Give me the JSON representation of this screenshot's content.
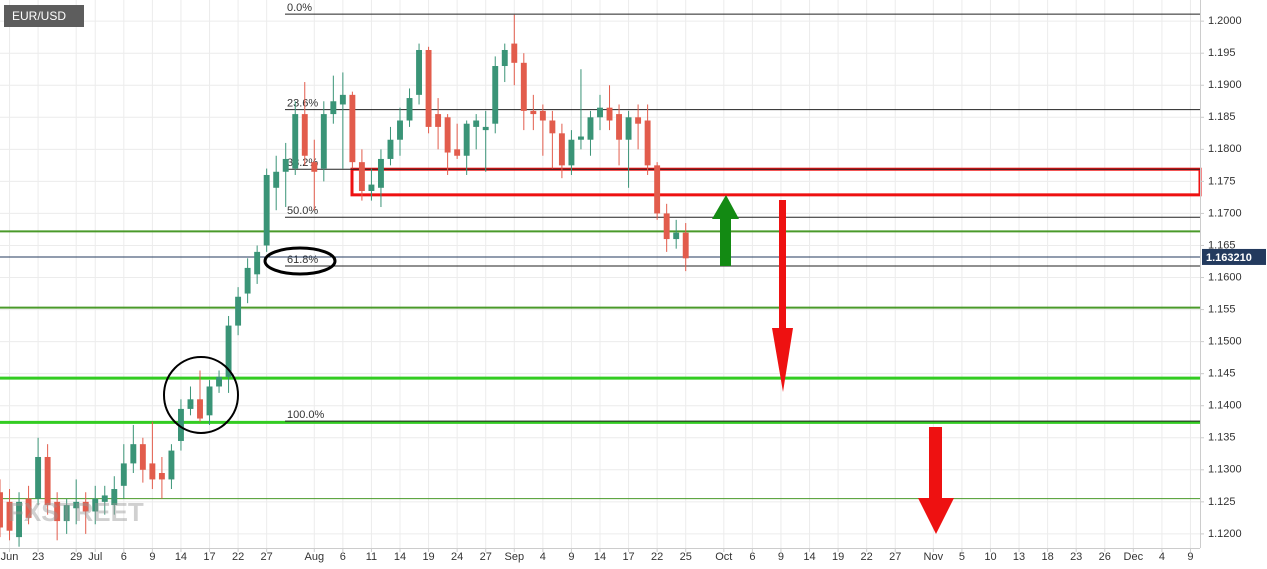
{
  "chart_data": {
    "type": "candlestick",
    "title": "EUR/USD",
    "watermark": "FXSTREET",
    "up_color": "#3a9477",
    "down_color": "#e25c4c",
    "grid": true,
    "x": [
      -4,
      -3,
      -2,
      -1,
      0,
      1,
      2,
      3,
      4,
      5,
      6,
      7,
      8,
      9,
      10,
      11,
      12,
      13,
      14,
      15,
      16,
      17,
      18,
      19,
      20,
      21,
      22,
      23,
      24,
      25,
      26,
      27,
      28,
      29,
      30,
      31,
      32,
      33,
      34,
      35,
      36,
      37,
      38,
      39,
      40,
      41,
      42,
      43,
      44,
      45,
      46,
      47,
      48,
      49,
      50,
      51,
      52,
      53,
      54,
      55,
      56,
      57,
      58,
      59,
      60,
      61,
      62,
      63,
      64,
      65,
      66,
      67,
      68
    ],
    "open": [
      1.1265,
      1.125,
      1.1195,
      1.1255,
      1.1255,
      1.132,
      1.125,
      1.122,
      1.124,
      1.125,
      1.1235,
      1.125,
      1.1245,
      1.1275,
      1.131,
      1.134,
      1.131,
      1.1295,
      1.1285,
      1.1345,
      1.1395,
      1.141,
      1.1385,
      1.143,
      1.1445,
      1.1525,
      1.1575,
      1.1605,
      1.165,
      1.174,
      1.1765,
      1.177,
      1.1855,
      1.178,
      1.177,
      1.1855,
      1.187,
      1.1885,
      1.178,
      1.1735,
      1.174,
      1.1785,
      1.1815,
      1.1845,
      1.1885,
      1.1955,
      1.1855,
      1.185,
      1.18,
      1.179,
      1.1835,
      1.183,
      1.184,
      1.193,
      1.1965,
      1.1935,
      1.186,
      1.186,
      1.1845,
      1.1825,
      1.1775,
      1.1815,
      1.1815,
      1.185,
      1.1865,
      1.1855,
      1.1815,
      1.185,
      1.1845,
      1.1775,
      1.17,
      1.166,
      1.167
    ],
    "high": [
      1.1285,
      1.127,
      1.1265,
      1.1275,
      1.135,
      1.134,
      1.1265,
      1.1255,
      1.1285,
      1.1265,
      1.1275,
      1.1275,
      1.129,
      1.134,
      1.137,
      1.135,
      1.1375,
      1.132,
      1.134,
      1.141,
      1.143,
      1.1455,
      1.144,
      1.1455,
      1.154,
      1.1585,
      1.163,
      1.165,
      1.177,
      1.179,
      1.181,
      1.1875,
      1.1905,
      1.1815,
      1.1875,
      1.1915,
      1.192,
      1.189,
      1.18,
      1.177,
      1.18,
      1.1835,
      1.1865,
      1.1895,
      1.1965,
      1.196,
      1.188,
      1.1855,
      1.184,
      1.1845,
      1.1855,
      1.186,
      1.1945,
      1.1965,
      1.201,
      1.195,
      1.1885,
      1.187,
      1.186,
      1.184,
      1.183,
      1.1925,
      1.186,
      1.1885,
      1.19,
      1.187,
      1.186,
      1.187,
      1.187,
      1.178,
      1.1715,
      1.169,
      1.1685
    ],
    "low": [
      1.1195,
      1.119,
      1.118,
      1.1215,
      1.1245,
      1.123,
      1.119,
      1.12,
      1.1215,
      1.12,
      1.1215,
      1.123,
      1.123,
      1.1255,
      1.1295,
      1.128,
      1.127,
      1.1255,
      1.127,
      1.133,
      1.1385,
      1.1375,
      1.137,
      1.142,
      1.142,
      1.151,
      1.156,
      1.159,
      1.164,
      1.1705,
      1.171,
      1.176,
      1.1775,
      1.1705,
      1.175,
      1.184,
      1.177,
      1.177,
      1.172,
      1.172,
      1.171,
      1.1775,
      1.179,
      1.1835,
      1.187,
      1.1825,
      1.18,
      1.176,
      1.1785,
      1.176,
      1.18,
      1.1765,
      1.1825,
      1.1905,
      1.19,
      1.183,
      1.183,
      1.179,
      1.177,
      1.1755,
      1.176,
      1.18,
      1.179,
      1.183,
      1.183,
      1.1775,
      1.174,
      1.18,
      1.176,
      1.169,
      1.164,
      1.1645,
      1.161
    ],
    "close": [
      1.121,
      1.1205,
      1.125,
      1.1225,
      1.132,
      1.1245,
      1.122,
      1.1245,
      1.125,
      1.1235,
      1.1255,
      1.126,
      1.127,
      1.131,
      1.134,
      1.13,
      1.1285,
      1.1285,
      1.133,
      1.1395,
      1.141,
      1.138,
      1.143,
      1.1445,
      1.1525,
      1.157,
      1.1615,
      1.164,
      1.176,
      1.1765,
      1.1785,
      1.1855,
      1.179,
      1.1765,
      1.1855,
      1.1875,
      1.1885,
      1.178,
      1.1735,
      1.1745,
      1.1785,
      1.1815,
      1.1845,
      1.188,
      1.1955,
      1.1835,
      1.1835,
      1.1795,
      1.179,
      1.184,
      1.1845,
      1.1835,
      1.193,
      1.1955,
      1.1935,
      1.186,
      1.1855,
      1.1845,
      1.1825,
      1.1775,
      1.1815,
      1.182,
      1.185,
      1.1865,
      1.1845,
      1.1815,
      1.185,
      1.184,
      1.1775,
      1.17,
      1.166,
      1.167,
      1.163
    ],
    "xlim": [
      -4,
      122
    ],
    "xticks": [
      {
        "value": -3,
        "label": "Jun"
      },
      {
        "value": 0,
        "label": "23"
      },
      {
        "value": 4,
        "label": "29"
      },
      {
        "value": 6,
        "label": "Jul"
      },
      {
        "value": 9,
        "label": "6"
      },
      {
        "value": 12,
        "label": "9"
      },
      {
        "value": 15,
        "label": "14"
      },
      {
        "value": 18,
        "label": "17"
      },
      {
        "value": 21,
        "label": "22"
      },
      {
        "value": 24,
        "label": "27"
      },
      {
        "value": 29,
        "label": "Aug"
      },
      {
        "value": 32,
        "label": "6"
      },
      {
        "value": 35,
        "label": "11"
      },
      {
        "value": 38,
        "label": "14"
      },
      {
        "value": 41,
        "label": "19"
      },
      {
        "value": 44,
        "label": "24"
      },
      {
        "value": 47,
        "label": "27"
      },
      {
        "value": 50,
        "label": "Sep"
      },
      {
        "value": 53,
        "label": "4"
      },
      {
        "value": 56,
        "label": "9"
      },
      {
        "value": 59,
        "label": "14"
      },
      {
        "value": 62,
        "label": "17"
      },
      {
        "value": 65,
        "label": "22"
      },
      {
        "value": 68,
        "label": "25"
      },
      {
        "value": 72,
        "label": "Oct"
      },
      {
        "value": 75,
        "label": "6"
      },
      {
        "value": 78,
        "label": "9"
      },
      {
        "value": 81,
        "label": "14"
      },
      {
        "value": 84,
        "label": "19"
      },
      {
        "value": 87,
        "label": "22"
      },
      {
        "value": 90,
        "label": "27"
      },
      {
        "value": 94,
        "label": "Nov"
      },
      {
        "value": 97,
        "label": "5"
      },
      {
        "value": 100,
        "label": "10"
      },
      {
        "value": 103,
        "label": "13"
      },
      {
        "value": 106,
        "label": "18"
      },
      {
        "value": 109,
        "label": "23"
      },
      {
        "value": 112,
        "label": "26"
      },
      {
        "value": 115,
        "label": "Dec"
      },
      {
        "value": 118,
        "label": "4"
      },
      {
        "value": 121,
        "label": "9"
      }
    ],
    "ylim": [
      1.1178,
      1.2033
    ],
    "yticks": [
      {
        "value": 1.12,
        "label": "1.1200"
      },
      1.125,
      {
        "value": 1.13,
        "label": "1.1300"
      },
      1.135,
      {
        "value": 1.14,
        "label": "1.1400"
      },
      1.145,
      {
        "value": 1.15,
        "label": "1.1500"
      },
      1.155,
      {
        "value": 1.16,
        "label": "1.1600"
      },
      1.165,
      {
        "value": 1.17,
        "label": "1.1700"
      },
      1.175,
      {
        "value": 1.18,
        "label": "1.1800"
      },
      1.185,
      {
        "value": 1.19,
        "label": "1.1900"
      },
      1.195,
      {
        "value": 1.2,
        "label": "1.2000"
      }
    ],
    "fib_levels": [
      {
        "label": "0.0%",
        "value": 1.2011
      },
      {
        "label": "23.6%",
        "value": 1.1862
      },
      {
        "label": "38.2%",
        "value": 1.1769
      },
      {
        "label": "50.0%",
        "value": 1.1694
      },
      {
        "label": "61.8%",
        "value": 1.1618
      },
      {
        "label": "100.0%",
        "value": 1.1376
      }
    ],
    "levels": [
      {
        "value": 1.1672,
        "color": "#4a9a2a",
        "weight": "medium"
      },
      {
        "value": 1.1553,
        "color": "#4a9a2a",
        "weight": "medium"
      },
      {
        "value": 1.1443,
        "color": "#33cc22",
        "weight": "thick"
      },
      {
        "value": 1.1374,
        "color": "#33cc22",
        "weight": "thick"
      },
      {
        "value": 1.1255,
        "color": "#4a9a2a",
        "weight": "thin"
      }
    ],
    "zone": {
      "low": 1.1729,
      "high": 1.1769,
      "color": "#ee1111"
    },
    "last_price": {
      "value": 1.16321,
      "label": "1.163210",
      "color": "#233a5e"
    }
  }
}
